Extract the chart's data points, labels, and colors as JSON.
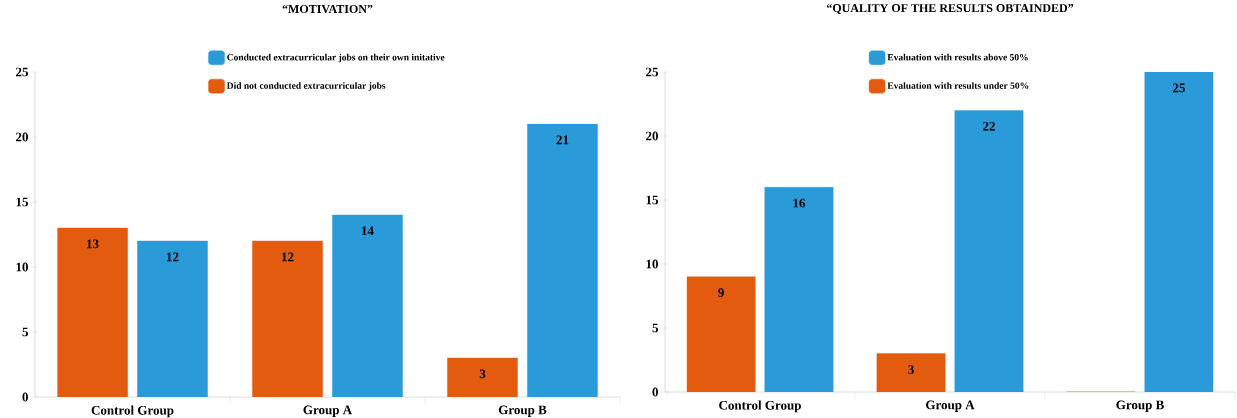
{
  "chart_data": [
    {
      "type": "bar",
      "title": "“MOTIVATION”",
      "categories": [
        "Control Group",
        "Group A",
        "Group B"
      ],
      "series": [
        {
          "name": "Did not conducted extracurricular jobs",
          "color": "#e35b0f",
          "values": [
            13,
            12,
            3
          ]
        },
        {
          "name": "Conducted extracurricular jobs on their own initative",
          "color": "#2a9ad8",
          "values": [
            12,
            14,
            21
          ]
        }
      ],
      "ylim": [
        0,
        25
      ],
      "yticks": [
        0,
        5,
        10,
        15,
        20,
        25
      ],
      "legend": "top",
      "data_labels": true
    },
    {
      "type": "bar",
      "title": "“QUALITY OF THE RESULTS OBTAINDED”",
      "categories": [
        "Control Group",
        "Group A",
        "Group B"
      ],
      "series": [
        {
          "name": "Evaluation with results under 50%",
          "color": "#e35b0f",
          "values": [
            9,
            3,
            0
          ],
          "value_labels": [
            "9",
            "3",
            null
          ]
        },
        {
          "name": "Evaluation with results above 50%",
          "color": "#2a9ad8",
          "values": [
            16,
            22,
            25
          ],
          "value_labels": [
            "16",
            "22",
            "25"
          ]
        }
      ],
      "ylim": [
        0,
        25
      ],
      "yticks": [
        0,
        5,
        10,
        15,
        20,
        25
      ],
      "legend": "top"
    }
  ]
}
